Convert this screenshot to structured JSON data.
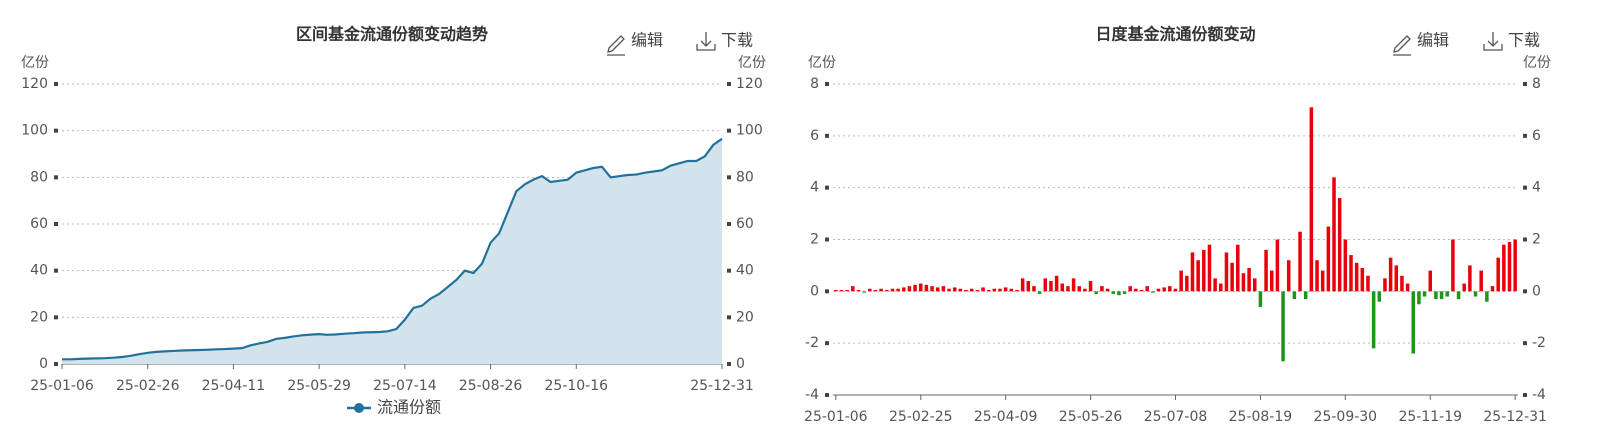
{
  "chart_data": [
    {
      "type": "area",
      "title": "区间基金流通份额变动趋势",
      "buttons": [
        "编辑",
        "下载"
      ],
      "y_unit": "亿份",
      "categories": [
        "25-01-06",
        null,
        null,
        null,
        null,
        null,
        null,
        null,
        null,
        null,
        "25-02-26",
        null,
        null,
        null,
        null,
        null,
        null,
        null,
        null,
        null,
        "25-04-11",
        null,
        null,
        null,
        null,
        null,
        null,
        null,
        null,
        null,
        "25-05-29",
        null,
        null,
        null,
        null,
        null,
        null,
        null,
        null,
        null,
        "25-07-14",
        null,
        null,
        null,
        null,
        null,
        null,
        null,
        null,
        null,
        "25-08-26",
        null,
        null,
        null,
        null,
        null,
        null,
        null,
        null,
        null,
        "25-10-16",
        null,
        null,
        null,
        null,
        null,
        null,
        null,
        null,
        null,
        null,
        null,
        null,
        null,
        null,
        null,
        null,
        "25-12-31"
      ],
      "series": [
        {
          "name": "流通份额",
          "color": "#21729b",
          "fill": "#d3e3ec",
          "values": [
            2,
            2,
            2.2,
            2.3,
            2.4,
            2.5,
            2.7,
            3,
            3.5,
            4.2,
            4.8,
            5.2,
            5.4,
            5.6,
            5.8,
            5.9,
            6,
            6.1,
            6.3,
            6.4,
            6.6,
            6.8,
            8,
            8.8,
            9.5,
            10.8,
            11.2,
            11.8,
            12.3,
            12.6,
            12.8,
            12.5,
            12.7,
            13,
            13.2,
            13.5,
            13.6,
            13.7,
            14,
            15,
            19,
            24,
            25,
            28,
            30,
            33,
            36,
            40,
            39,
            43,
            52,
            56,
            65,
            74,
            77,
            79,
            80.5,
            78,
            78.5,
            79,
            82,
            83,
            84,
            84.5,
            80,
            80.5,
            81,
            81.2,
            82,
            82.5,
            83,
            85,
            86,
            87,
            87,
            89,
            94,
            96.5
          ]
        }
      ],
      "ylim": [
        0,
        120
      ],
      "yticks": [
        0,
        20,
        40,
        60,
        80,
        100,
        120
      ],
      "grid": true,
      "mirror_axis": true,
      "legend": "bottom"
    },
    {
      "type": "bar",
      "title": "日度基金流通份额变动",
      "buttons": [
        "编辑",
        "下载"
      ],
      "y_unit": "亿份",
      "categories": [
        "25-01-06",
        null,
        null,
        null,
        null,
        null,
        null,
        null,
        null,
        null,
        null,
        null,
        null,
        null,
        null,
        "25-02-25",
        null,
        null,
        null,
        null,
        null,
        null,
        null,
        null,
        null,
        null,
        null,
        null,
        null,
        null,
        "25-04-09",
        null,
        null,
        null,
        null,
        null,
        null,
        null,
        null,
        null,
        null,
        null,
        null,
        null,
        null,
        "25-05-26",
        null,
        null,
        null,
        null,
        null,
        null,
        null,
        null,
        null,
        null,
        null,
        null,
        null,
        null,
        "25-07-08",
        null,
        null,
        null,
        null,
        null,
        null,
        null,
        null,
        null,
        null,
        null,
        null,
        null,
        null,
        "25-08-19",
        null,
        null,
        null,
        null,
        null,
        null,
        null,
        null,
        null,
        null,
        null,
        null,
        null,
        null,
        "25-09-30",
        null,
        null,
        null,
        null,
        null,
        null,
        null,
        null,
        null,
        null,
        null,
        null,
        null,
        null,
        "25-11-19",
        null,
        null,
        null,
        null,
        null,
        null,
        null,
        null,
        null,
        null,
        null,
        null,
        null,
        null,
        "25-12-31"
      ],
      "values": [
        0.05,
        0.05,
        0.05,
        0.2,
        0.05,
        -0.05,
        0.1,
        0.05,
        0.1,
        0.05,
        0.1,
        0.1,
        0.15,
        0.2,
        0.25,
        0.3,
        0.25,
        0.2,
        0.15,
        0.2,
        0.1,
        0.15,
        0.1,
        0.05,
        0.1,
        0.05,
        0.15,
        0.05,
        0.1,
        0.1,
        0.15,
        0.1,
        0.05,
        0.5,
        0.4,
        0.2,
        -0.1,
        0.5,
        0.4,
        0.6,
        0.3,
        0.2,
        0.5,
        0.2,
        0.1,
        0.4,
        -0.1,
        0.2,
        0.1,
        -0.1,
        -0.15,
        -0.1,
        0.2,
        0.1,
        0.05,
        0.2,
        -0.05,
        0.1,
        0.15,
        0.2,
        0.1,
        0.8,
        0.6,
        1.5,
        1.2,
        1.6,
        1.8,
        0.5,
        0.3,
        1.5,
        1.1,
        1.8,
        0.7,
        0.9,
        0.5,
        -0.6,
        1.6,
        0.8,
        2.0,
        -2.7,
        1.2,
        -0.3,
        2.3,
        -0.3,
        7.1,
        1.2,
        0.8,
        2.5,
        4.4,
        3.6,
        2.0,
        1.4,
        1.1,
        0.9,
        0.6,
        -2.2,
        -0.4,
        0.5,
        1.3,
        1.0,
        0.6,
        0.3,
        -2.4,
        -0.5,
        -0.2,
        0.8,
        -0.3,
        -0.3,
        -0.2,
        2.0,
        -0.3,
        0.3,
        1.0,
        -0.2,
        0.8,
        -0.4,
        0.2,
        1.3,
        1.8,
        1.9,
        2.0
      ],
      "color_positive": "#e8000b",
      "color_negative": "#1e9619",
      "ylim": [
        -4,
        8
      ],
      "yticks": [
        -4,
        -2,
        0,
        2,
        4,
        6,
        8
      ],
      "grid": true,
      "mirror_axis": true
    }
  ]
}
